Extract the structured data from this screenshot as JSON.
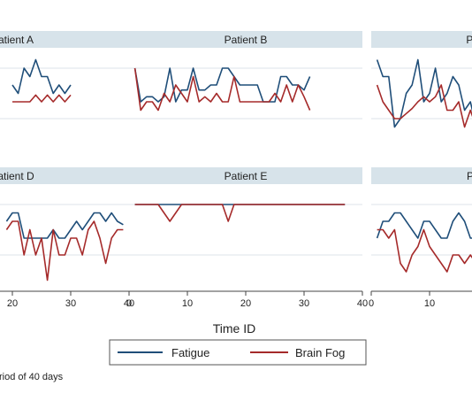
{
  "chart_data": {
    "type": "line",
    "xlabel": "Time ID",
    "note": "riod of 40 days",
    "xlim": [
      0,
      40
    ],
    "xticks": [
      0,
      10,
      20,
      30,
      40
    ],
    "legend_position": "bottom-center",
    "legend": [
      {
        "name": "Fatigue",
        "color": "#1f4e79"
      },
      {
        "name": "Brain Fog",
        "color": "#a52a2a"
      }
    ],
    "colors": {
      "fatigue": "#1f4e79",
      "brainfog": "#a52a2a",
      "strip": "#d7e3ea",
      "grid": "#dde3e8"
    },
    "panels": [
      {
        "title": "Patient A",
        "series": [
          {
            "name": "Fatigue",
            "x": [
              20,
              21,
              22,
              23,
              24,
              25,
              26,
              27,
              28,
              29,
              30
            ],
            "y": [
              4,
              3.5,
              5,
              4.5,
              5.5,
              4.5,
              4.5,
              3.5,
              4,
              3.5,
              4
            ]
          },
          {
            "name": "Brain Fog",
            "x": [
              20,
              21,
              22,
              23,
              24,
              25,
              26,
              27,
              28,
              29,
              30
            ],
            "y": [
              3,
              3,
              3,
              3,
              3.4,
              3,
              3.4,
              3,
              3.4,
              3,
              3.4
            ]
          }
        ]
      },
      {
        "title": "Patient B",
        "series": [
          {
            "name": "Fatigue",
            "x": [
              1,
              2,
              3,
              4,
              5,
              6,
              7,
              8,
              9,
              10,
              11,
              12,
              13,
              14,
              15,
              16,
              17,
              18,
              19,
              20,
              21,
              22,
              23,
              24,
              25,
              26,
              27,
              28,
              29,
              30,
              31
            ],
            "y": [
              5,
              3,
              3.3,
              3.3,
              3,
              3.3,
              5,
              3,
              3.7,
              3.7,
              5,
              3.7,
              3.7,
              4,
              4,
              5,
              5,
              4.5,
              4,
              4,
              4,
              4,
              3,
              3,
              3,
              4.5,
              4.5,
              4,
              4,
              3.7,
              4.5
            ]
          },
          {
            "name": "Brain Fog",
            "x": [
              1,
              2,
              3,
              4,
              5,
              6,
              7,
              8,
              9,
              10,
              11,
              12,
              13,
              14,
              15,
              16,
              17,
              18,
              19,
              20,
              21,
              22,
              23,
              24,
              25,
              26,
              27,
              28,
              29,
              30,
              31
            ],
            "y": [
              5,
              2.5,
              3,
              3,
              2.5,
              3.5,
              3,
              4,
              3.5,
              3,
              4.5,
              3,
              3.3,
              3,
              3.5,
              3,
              3,
              4.5,
              3,
              3,
              3,
              3,
              3,
              3,
              3.5,
              3,
              4,
              3,
              4,
              3.3,
              2.5
            ]
          }
        ]
      },
      {
        "title": "Patient C",
        "series": [
          {
            "name": "Fatigue",
            "x": [
              1,
              2,
              3,
              4,
              5,
              6,
              7,
              8,
              9,
              10,
              11,
              12,
              13,
              14,
              15,
              16,
              17,
              18
            ],
            "y": [
              5.5,
              4.5,
              4.5,
              1.5,
              2,
              3.5,
              4,
              5.5,
              3,
              3.5,
              5,
              3,
              3.5,
              4.5,
              4,
              2.5,
              3,
              1.5
            ]
          },
          {
            "name": "Brain Fog",
            "x": [
              1,
              2,
              3,
              4,
              5,
              6,
              7,
              8,
              9,
              10,
              11,
              12,
              13,
              14,
              15,
              16,
              17,
              18
            ],
            "y": [
              4,
              3,
              2.5,
              2,
              2,
              2.3,
              2.6,
              3,
              3.3,
              3,
              3.3,
              4,
              2.5,
              2.5,
              3,
              1.5,
              2.5,
              1.5
            ]
          }
        ]
      },
      {
        "title": "Patient D",
        "series": [
          {
            "name": "Fatigue",
            "x": [
              19,
              20,
              21,
              22,
              23,
              24,
              25,
              26,
              27,
              28,
              29,
              30,
              31,
              32,
              33,
              34,
              35,
              36,
              37,
              38,
              39
            ],
            "y": [
              4,
              4.5,
              4.5,
              3,
              3,
              3,
              3,
              3,
              3.5,
              3,
              3,
              3.5,
              4,
              3.5,
              4,
              4.5,
              4.5,
              4,
              4.5,
              4,
              3.8
            ]
          },
          {
            "name": "Brain Fog",
            "x": [
              19,
              20,
              21,
              22,
              23,
              24,
              25,
              26,
              27,
              28,
              29,
              30,
              31,
              32,
              33,
              34,
              35,
              36,
              37,
              38,
              39
            ],
            "y": [
              3.5,
              4,
              4,
              2,
              3.5,
              2,
              3,
              0.5,
              3.5,
              2,
              2,
              3,
              3,
              2,
              3.5,
              4,
              3,
              1.5,
              3,
              3.5,
              3.5
            ]
          }
        ]
      },
      {
        "title": "Patient E",
        "series": [
          {
            "name": "Fatigue",
            "x": [
              1,
              37
            ],
            "y": [
              5,
              5
            ]
          },
          {
            "name": "Brain Fog",
            "x": [
              1,
              5,
              7,
              9,
              16,
              17,
              18,
              37
            ],
            "y": [
              5,
              5,
              4,
              5,
              5,
              4,
              5,
              5
            ]
          }
        ]
      },
      {
        "title": "Patient F",
        "series": [
          {
            "name": "Fatigue",
            "x": [
              1,
              2,
              3,
              4,
              5,
              6,
              7,
              8,
              9,
              10,
              11,
              12,
              13,
              14,
              15,
              16,
              17,
              18
            ],
            "y": [
              3,
              4,
              4,
              4.5,
              4.5,
              4,
              3.5,
              3,
              4,
              4,
              3.5,
              3,
              3,
              4,
              4.5,
              4,
              3,
              3
            ]
          },
          {
            "name": "Brain Fog",
            "x": [
              1,
              2,
              3,
              4,
              5,
              6,
              7,
              8,
              9,
              10,
              11,
              12,
              13,
              14,
              15,
              16,
              17,
              18
            ],
            "y": [
              3.5,
              3.5,
              3,
              3.5,
              1.5,
              1,
              2,
              2.5,
              3.5,
              2.5,
              2,
              1.5,
              1,
              2,
              2,
              1.5,
              2,
              1.5
            ]
          }
        ]
      }
    ]
  }
}
